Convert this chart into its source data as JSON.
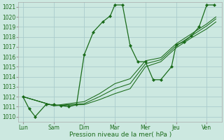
{
  "background_color": "#cce8e0",
  "grid_color": "#aacccc",
  "line_color": "#1a6b1a",
  "marker_color": "#1a6b1a",
  "xlabel": "Pression niveau de la mer( hPa )",
  "ylim": [
    1009.5,
    1021.5
  ],
  "yticks": [
    1010,
    1011,
    1012,
    1013,
    1014,
    1015,
    1016,
    1017,
    1018,
    1019,
    1020,
    1021
  ],
  "day_labels": [
    "Lun",
    "Sam",
    "Dim",
    "Mar",
    "Mer",
    "Jeu",
    "Ven"
  ],
  "day_positions": [
    0,
    1,
    2,
    3,
    4,
    5,
    6
  ],
  "xlim": [
    -0.15,
    6.5
  ],
  "series": [
    {
      "x": [
        0.0,
        0.2,
        0.4,
        0.75,
        1.0,
        1.25,
        1.5,
        1.75,
        2.0,
        2.3,
        2.6,
        2.85,
        3.0,
        3.25,
        3.5,
        3.75,
        4.0,
        4.25,
        4.5,
        4.85,
        5.0,
        5.25,
        5.5,
        5.75,
        6.0,
        6.25
      ],
      "y": [
        1012.0,
        1010.8,
        1010.0,
        1011.2,
        1011.2,
        1011.1,
        1011.0,
        1011.2,
        1016.2,
        1018.5,
        1019.5,
        1020.1,
        1021.2,
        1021.2,
        1017.1,
        1015.5,
        1015.5,
        1013.7,
        1013.7,
        1015.0,
        1017.2,
        1017.5,
        1018.1,
        1019.0,
        1021.2,
        1021.2
      ],
      "has_markers": true
    },
    {
      "x": [
        0.0,
        1.0,
        2.0,
        2.5,
        3.0,
        3.5,
        4.0,
        4.5,
        5.0,
        5.5,
        6.0,
        6.3
      ],
      "y": [
        1012.0,
        1011.1,
        1011.2,
        1011.7,
        1012.3,
        1012.8,
        1015.0,
        1015.5,
        1016.9,
        1017.9,
        1018.8,
        1019.5
      ],
      "has_markers": false
    },
    {
      "x": [
        0.0,
        1.0,
        2.0,
        2.5,
        3.0,
        3.5,
        4.0,
        4.5,
        5.0,
        5.5,
        6.0,
        6.3
      ],
      "y": [
        1012.0,
        1011.1,
        1011.3,
        1012.0,
        1012.8,
        1013.3,
        1015.3,
        1015.7,
        1017.1,
        1018.1,
        1019.1,
        1019.8
      ],
      "has_markers": false
    },
    {
      "x": [
        0.0,
        1.0,
        2.0,
        2.5,
        3.0,
        3.5,
        4.0,
        4.5,
        5.0,
        5.5,
        6.0,
        6.3
      ],
      "y": [
        1012.0,
        1011.1,
        1011.5,
        1012.3,
        1013.3,
        1013.8,
        1015.6,
        1015.9,
        1017.3,
        1018.3,
        1019.3,
        1020.0
      ],
      "has_markers": false
    }
  ]
}
